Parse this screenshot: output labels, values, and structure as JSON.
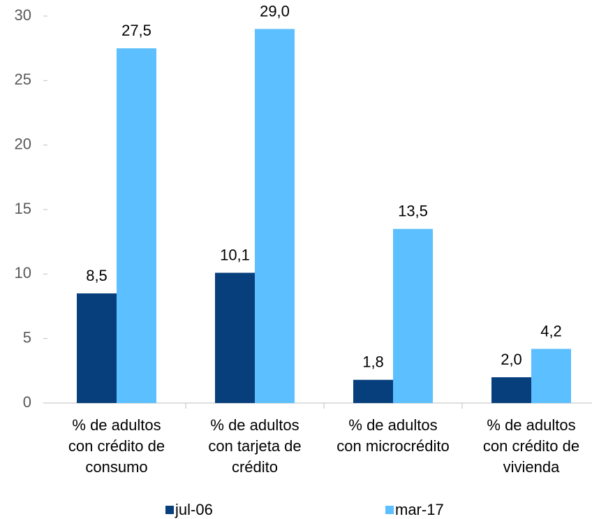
{
  "chart_data": {
    "type": "bar",
    "categories": [
      [
        "% de adultos",
        "con crédito de",
        "consumo"
      ],
      [
        "% de adultos",
        "con tarjeta de",
        "crédito"
      ],
      [
        "% de adultos",
        "con microcrédito"
      ],
      [
        "% de adultos",
        "con crédito de",
        "vivienda"
      ]
    ],
    "series": [
      {
        "name": "jul-06",
        "color": "#063f7c",
        "values": [
          8.5,
          10.1,
          1.8,
          2.0
        ],
        "value_labels": [
          "8,5",
          "10,1",
          "1,8",
          "2,0"
        ]
      },
      {
        "name": "mar-17",
        "color": "#5cbfff",
        "values": [
          27.5,
          29.0,
          13.5,
          4.2
        ],
        "value_labels": [
          "27,5",
          "29,0",
          "13,5",
          "4,2"
        ]
      }
    ],
    "ylim": [
      0,
      30
    ],
    "yticks": [
      0,
      5,
      10,
      15,
      20,
      25,
      30
    ],
    "legend": "bottom"
  }
}
